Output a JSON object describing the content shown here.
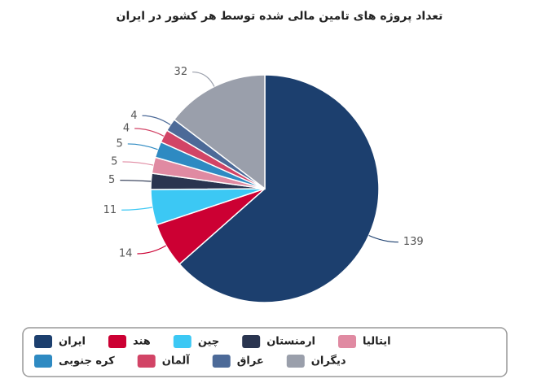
{
  "chart_data": {
    "type": "pie",
    "title": "تعداد پروژه های تامین مالی شده توسط هر کشور در ایران",
    "categories": [
      "ایران",
      "هند",
      "چین",
      "ارمنستان",
      "ایتالیا",
      "کره جنوبی",
      "آلمان",
      "عراق",
      "دیگران"
    ],
    "values": [
      139,
      14,
      11,
      5,
      5,
      5,
      4,
      4,
      32
    ],
    "colors": [
      "#1c3f6e",
      "#cc0033",
      "#3cc8f4",
      "#2a3550",
      "#e08aa2",
      "#2e8ac2",
      "#d24466",
      "#4c6a98",
      "#9a9fab"
    ],
    "legend": "bottom"
  }
}
